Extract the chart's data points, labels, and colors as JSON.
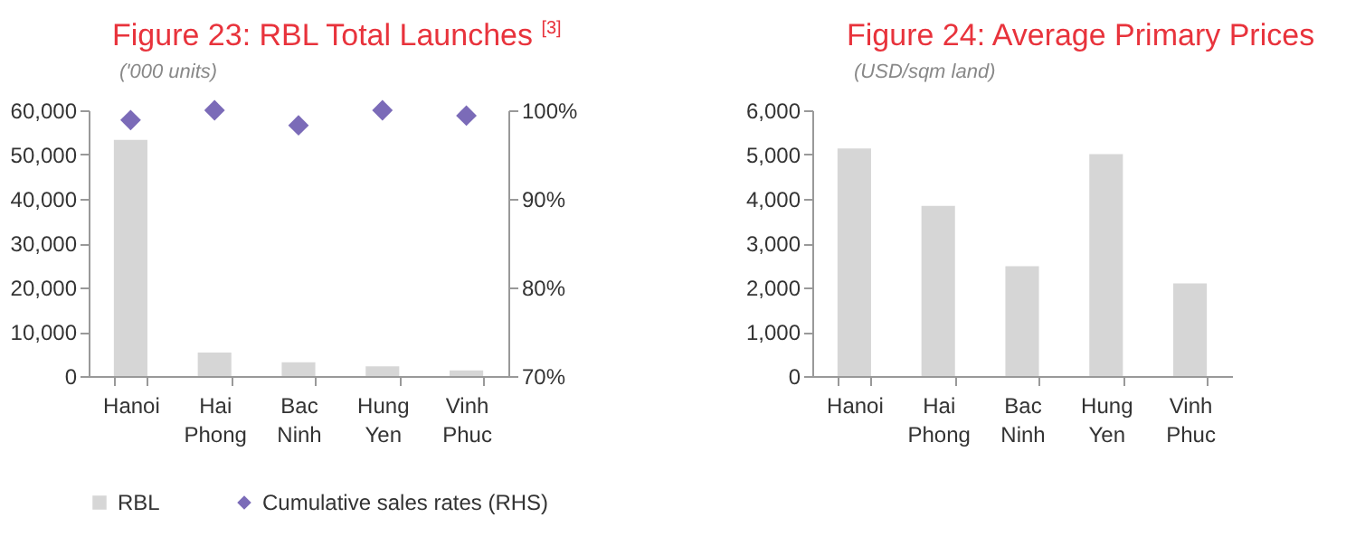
{
  "chart_data": [
    {
      "type": "bar",
      "title": "Figure 23: RBL Total Launches $^{[3]}$",
      "subtitle": "('000 units)",
      "categories": [
        "Hanoi",
        "Hai Phong",
        "Bac Ninh",
        "Hung Yen",
        "Vinh Phuc"
      ],
      "series": [
        {
          "name": "RBL",
          "type": "bar",
          "color": "#d6d6d6",
          "values": [
            53300,
            5300,
            3100,
            2200,
            1300
          ]
        },
        {
          "name": "Cumulative sales rates (RHS)",
          "type": "scatter",
          "axis": "y2",
          "color": "#7b6bb8",
          "values": [
            98.9,
            100,
            98.3,
            100,
            99.4
          ]
        }
      ],
      "marker": "diamond",
      "ylim": [
        0,
        60000
      ],
      "yticks": [
        0,
        {
          "value": 10000,
          "label": "10,000"
        },
        {
          "value": 20000,
          "label": "20,000"
        },
        {
          "value": 30000,
          "label": "30,000"
        },
        {
          "value": 40000,
          "label": "40,000"
        },
        {
          "value": 50000,
          "label": "50,000"
        },
        {
          "value": 60000,
          "label": "60,000"
        }
      ],
      "y2lim": [
        70,
        100
      ],
      "y2ticks": [
        {
          "value": 70,
          "label": "70%"
        },
        {
          "value": 80,
          "label": "80%"
        },
        {
          "value": 90,
          "label": "90%"
        },
        {
          "value": 100,
          "label": "100%"
        }
      ],
      "legend": "bottom",
      "grid": false
    },
    {
      "type": "bar",
      "title": "Figure 24:  Average Primary Prices",
      "subtitle": "(USD/sqm land)",
      "categories": [
        "Hanoi",
        "Hai Phong",
        "Bac Ninh",
        "Hung Yen",
        "Vinh Phuc"
      ],
      "values": [
        5140,
        3840,
        2480,
        5010,
        2090
      ],
      "color": "#d6d6d6",
      "ylim": [
        0,
        6000
      ],
      "yticks": [
        0,
        {
          "value": 1000,
          "label": "1,000"
        },
        {
          "value": 2000,
          "label": "2,000"
        },
        {
          "value": 3000,
          "label": "3,000"
        },
        {
          "value": 4000,
          "label": "4,000"
        },
        {
          "value": 5000,
          "label": "5,000"
        },
        {
          "value": 6000,
          "label": "6,000"
        }
      ],
      "grid": false
    }
  ]
}
